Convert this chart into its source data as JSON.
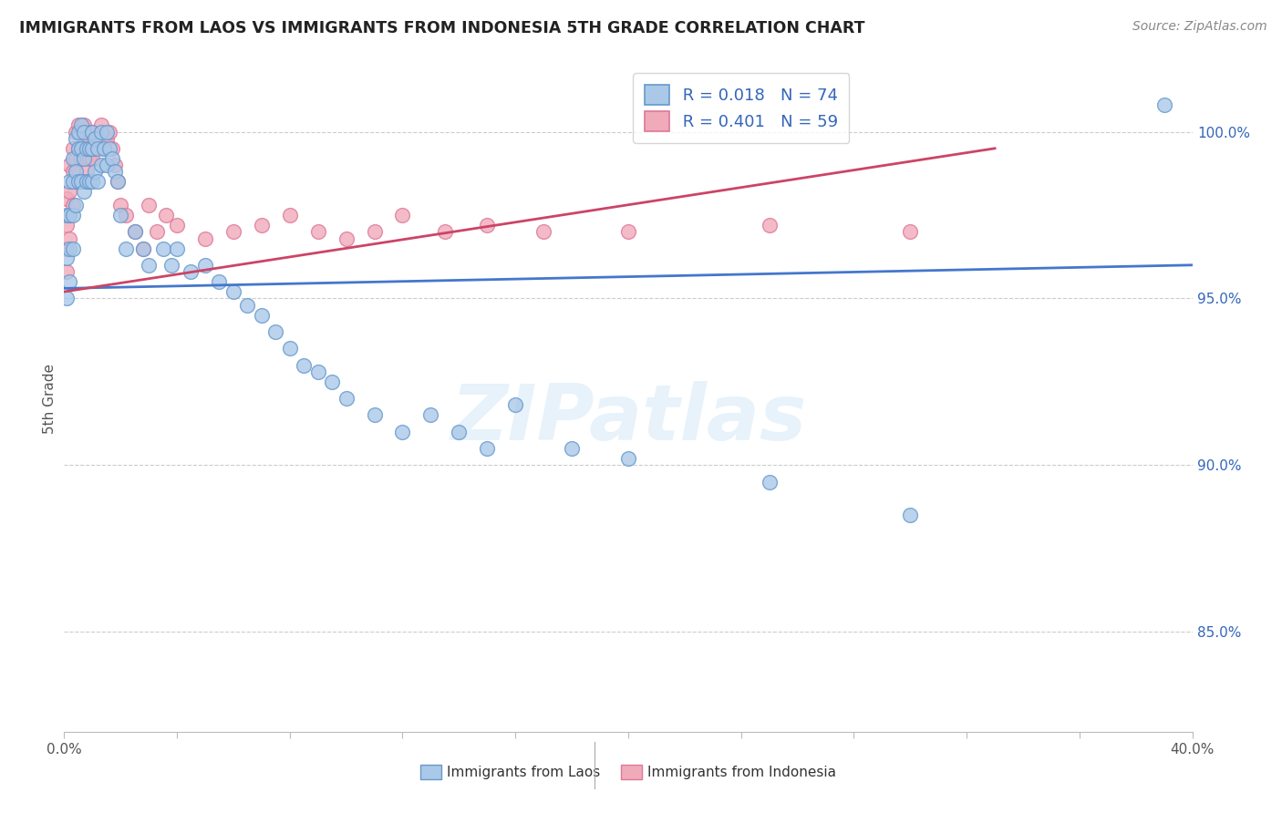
{
  "title": "IMMIGRANTS FROM LAOS VS IMMIGRANTS FROM INDONESIA 5TH GRADE CORRELATION CHART",
  "source": "Source: ZipAtlas.com",
  "ylabel": "5th Grade",
  "xlim": [
    0.0,
    0.4
  ],
  "ylim": [
    82.0,
    102.0
  ],
  "yticks": [
    85.0,
    90.0,
    95.0,
    100.0
  ],
  "ytick_labels": [
    "85.0%",
    "90.0%",
    "95.0%",
    "100.0%"
  ],
  "legend_blue_R": "R = 0.018",
  "legend_blue_N": "N = 74",
  "legend_pink_R": "R = 0.401",
  "legend_pink_N": "N = 59",
  "blue_color": "#aac8e8",
  "pink_color": "#f0aaba",
  "blue_edge": "#6699cc",
  "pink_edge": "#dd7799",
  "trend_blue": "#4477cc",
  "trend_pink": "#cc4466",
  "watermark": "ZIPatlas",
  "blue_trend_x": [
    0.0,
    0.4
  ],
  "blue_trend_y": [
    95.3,
    96.0
  ],
  "pink_trend_x": [
    0.0,
    0.33
  ],
  "pink_trend_y": [
    95.2,
    99.5
  ],
  "blue_scatter_x": [
    0.001,
    0.001,
    0.001,
    0.002,
    0.002,
    0.002,
    0.002,
    0.003,
    0.003,
    0.003,
    0.003,
    0.004,
    0.004,
    0.004,
    0.005,
    0.005,
    0.005,
    0.006,
    0.006,
    0.006,
    0.007,
    0.007,
    0.007,
    0.008,
    0.008,
    0.009,
    0.009,
    0.01,
    0.01,
    0.01,
    0.011,
    0.011,
    0.012,
    0.012,
    0.013,
    0.013,
    0.014,
    0.015,
    0.015,
    0.016,
    0.017,
    0.018,
    0.019,
    0.02,
    0.022,
    0.025,
    0.028,
    0.03,
    0.035,
    0.038,
    0.04,
    0.045,
    0.05,
    0.055,
    0.06,
    0.065,
    0.07,
    0.075,
    0.08,
    0.085,
    0.09,
    0.095,
    0.1,
    0.11,
    0.12,
    0.13,
    0.14,
    0.15,
    0.16,
    0.18,
    0.2,
    0.25,
    0.3,
    0.39
  ],
  "blue_scatter_y": [
    97.5,
    96.2,
    95.0,
    98.5,
    97.5,
    96.5,
    95.5,
    99.2,
    98.5,
    97.5,
    96.5,
    99.8,
    98.8,
    97.8,
    100.0,
    99.5,
    98.5,
    100.2,
    99.5,
    98.5,
    100.0,
    99.2,
    98.2,
    99.5,
    98.5,
    99.5,
    98.5,
    100.0,
    99.5,
    98.5,
    99.8,
    98.8,
    99.5,
    98.5,
    100.0,
    99.0,
    99.5,
    100.0,
    99.0,
    99.5,
    99.2,
    98.8,
    98.5,
    97.5,
    96.5,
    97.0,
    96.5,
    96.0,
    96.5,
    96.0,
    96.5,
    95.8,
    96.0,
    95.5,
    95.2,
    94.8,
    94.5,
    94.0,
    93.5,
    93.0,
    92.8,
    92.5,
    92.0,
    91.5,
    91.0,
    91.5,
    91.0,
    90.5,
    91.8,
    90.5,
    90.2,
    89.5,
    88.5,
    100.8
  ],
  "pink_scatter_x": [
    0.001,
    0.001,
    0.001,
    0.001,
    0.002,
    0.002,
    0.002,
    0.002,
    0.003,
    0.003,
    0.003,
    0.004,
    0.004,
    0.004,
    0.005,
    0.005,
    0.005,
    0.006,
    0.006,
    0.007,
    0.007,
    0.007,
    0.008,
    0.008,
    0.009,
    0.009,
    0.01,
    0.01,
    0.011,
    0.012,
    0.013,
    0.014,
    0.015,
    0.016,
    0.017,
    0.018,
    0.019,
    0.02,
    0.022,
    0.025,
    0.028,
    0.03,
    0.033,
    0.036,
    0.04,
    0.05,
    0.06,
    0.07,
    0.08,
    0.09,
    0.1,
    0.11,
    0.12,
    0.135,
    0.15,
    0.17,
    0.2,
    0.25,
    0.3
  ],
  "pink_scatter_y": [
    98.0,
    97.2,
    96.5,
    95.8,
    99.0,
    98.2,
    97.5,
    96.8,
    99.5,
    98.8,
    97.8,
    100.0,
    99.2,
    98.5,
    100.2,
    99.5,
    98.5,
    100.0,
    99.2,
    100.2,
    99.5,
    98.5,
    99.8,
    98.8,
    100.0,
    99.2,
    100.0,
    99.2,
    99.5,
    99.8,
    100.2,
    99.5,
    99.8,
    100.0,
    99.5,
    99.0,
    98.5,
    97.8,
    97.5,
    97.0,
    96.5,
    97.8,
    97.0,
    97.5,
    97.2,
    96.8,
    97.0,
    97.2,
    97.5,
    97.0,
    96.8,
    97.0,
    97.5,
    97.0,
    97.2,
    97.0,
    97.0,
    97.2,
    97.0
  ]
}
